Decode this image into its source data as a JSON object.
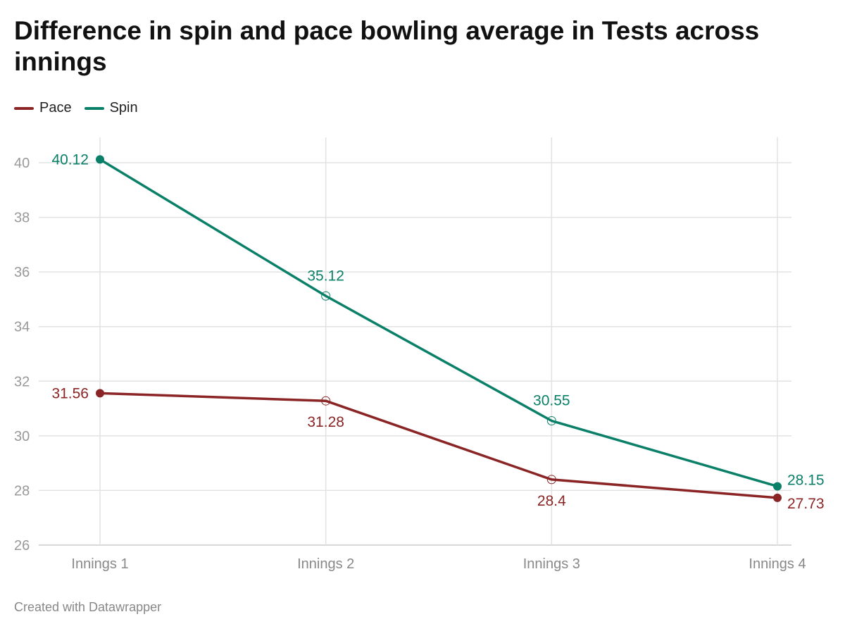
{
  "chart_data": {
    "type": "line",
    "title": "Difference in spin and pace bowling average in Tests across innings",
    "categories": [
      "Innings 1",
      "Innings 2",
      "Innings 3",
      "Innings 4"
    ],
    "series": [
      {
        "name": "Pace",
        "color": "#8b2525",
        "values": [
          31.56,
          31.28,
          28.4,
          27.73
        ],
        "labels": [
          "31.56",
          "31.28",
          "28.4",
          "27.73"
        ]
      },
      {
        "name": "Spin",
        "color": "#0b8068",
        "values": [
          40.12,
          35.12,
          30.55,
          28.15
        ],
        "labels": [
          "40.12",
          "35.12",
          "30.55",
          "28.15"
        ]
      }
    ],
    "yticks": [
      26,
      28,
      30,
      32,
      34,
      36,
      38,
      40
    ],
    "ylim": [
      26,
      40
    ],
    "xlabel": "",
    "ylabel": "",
    "grid": true,
    "legend_position": "top-left"
  },
  "credit": "Created with Datawrapper"
}
